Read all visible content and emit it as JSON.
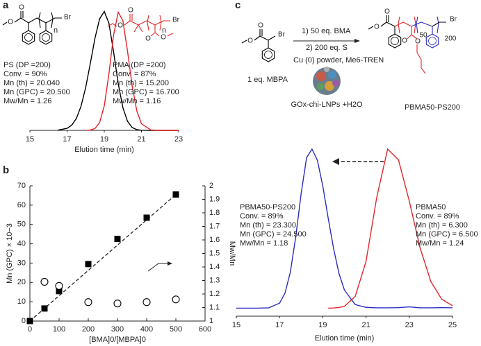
{
  "panel_labels": [
    "a",
    "b",
    "c"
  ],
  "chart_data": [
    {
      "type": "line",
      "xlabel": "Elution time (min)",
      "x": [
        15,
        16,
        16.5,
        17,
        17.25,
        17.5,
        17.75,
        18,
        18.25,
        18.5,
        18.75,
        19,
        19.25,
        19.5,
        19.75,
        20,
        20.25,
        20.5,
        20.75,
        21,
        21.5,
        22,
        23
      ],
      "xlim": [
        15,
        23
      ],
      "xticks": [
        15,
        17,
        19,
        21,
        23
      ],
      "ylim": [
        0,
        1.05
      ],
      "series": [
        {
          "name": "PS (DP =200)",
          "color": "#000000",
          "values": [
            null,
            null,
            0.002,
            0.017,
            0.044,
            0.1,
            0.203,
            0.36,
            0.563,
            0.775,
            0.938,
            1,
            0.902,
            0.662,
            0.395,
            0.192,
            0.076,
            0.024,
            0.006,
            0.001,
            0,
            0,
            0
          ],
          "notes": [
            "Conv. = 90%",
            "Mn (th) = 20.040",
            "Mn (GPC) = 20.500",
            "Mw/Mn = 1.26"
          ]
        },
        {
          "name": "PMA (DP =200)",
          "color": "#e5252a",
          "values": [
            null,
            null,
            null,
            null,
            null,
            null,
            null,
            0,
            0.003,
            0.015,
            0.066,
            0.206,
            0.474,
            0.801,
            0.994,
            0.923,
            0.667,
            0.375,
            0.164,
            0.056,
            0.003,
            0,
            0
          ],
          "notes": [
            "Conv. = 87%",
            "Mn (th) = 15.200",
            "Mn (GPC) = 16.700",
            "Mw/Mn = 1.16"
          ]
        }
      ],
      "structures": [
        [
          "O",
          "O",
          "n",
          "Br"
        ],
        [
          "O",
          "O",
          "O",
          "O",
          "n",
          "Br"
        ]
      ]
    },
    {
      "type": "scatter",
      "xlabel": "[BMA]0/[MBPA]0",
      "ylabel": "Mn (GPC) × 10−3",
      "y2label": "Mw/Mn",
      "xlim": [
        0,
        600
      ],
      "xticks": [
        0,
        100,
        200,
        300,
        400,
        500,
        600
      ],
      "ylim": [
        0,
        70
      ],
      "yticks": [
        0,
        10,
        20,
        30,
        40,
        50,
        60,
        70
      ],
      "y2lim": [
        1,
        2
      ],
      "y2ticks": [
        1,
        1.1,
        1.2,
        1.3,
        1.4,
        1.5,
        1.6,
        1.7,
        1.8,
        1.9,
        2
      ],
      "series": [
        {
          "marker": "square",
          "color": "#000000",
          "x": [
            0,
            50,
            100,
            200,
            300,
            400,
            500
          ],
          "values": [
            0,
            6.5,
            15.5,
            29.5,
            42.5,
            53.5,
            65.5
          ]
        },
        {
          "marker": "circle",
          "color": "#000000",
          "axis": "y2",
          "x": [
            50,
            100,
            200,
            300,
            400,
            500
          ],
          "values": [
            1.29,
            1.26,
            1.14,
            1.13,
            1.14,
            1.16
          ]
        }
      ],
      "fit": {
        "x": [
          0,
          500
        ],
        "values": [
          0,
          65.5
        ]
      }
    },
    {
      "type": "line",
      "xlabel": "Elution time (min)",
      "x": [
        15,
        16,
        16.5,
        17,
        17.25,
        17.5,
        17.75,
        18,
        18.25,
        18.5,
        18.75,
        19,
        19.25,
        19.5,
        19.75,
        20,
        20.5,
        21,
        21.5,
        22,
        22.5,
        23,
        23.5,
        24,
        24.5,
        25
      ],
      "xlim": [
        15,
        25
      ],
      "xticks": [
        15,
        17,
        19,
        21,
        23,
        25
      ],
      "ylim": [
        -0.04,
        1
      ],
      "series": [
        {
          "name": "PBMA50-PS200",
          "color": "#2b2bc0",
          "values": [
            0.01,
            0.01,
            0.012,
            0.041,
            0.103,
            0.235,
            0.455,
            0.725,
            0.946,
            1.0,
            0.93,
            0.77,
            0.57,
            0.38,
            0.225,
            0.123,
            0.032,
            0.015,
            0.012,
            0.012,
            0.013,
            0.018,
            0.012,
            0.012,
            0.013,
            0.012
          ],
          "notes": [
            "Conv. = 89%",
            "Mn (th) = 23.300",
            "Mn (GPC) = 24.500",
            "Mw/Mn = 1.18"
          ]
        },
        {
          "name": "PBMA50",
          "color": "#e5252a",
          "values": [
            null,
            null,
            null,
            null,
            null,
            null,
            null,
            null,
            null,
            null,
            null,
            null,
            0.01,
            0.011,
            0.014,
            0.021,
            0.083,
            0.301,
            0.703,
            1.0,
            0.933,
            0.677,
            0.385,
            0.175,
            0.066,
            0.025
          ],
          "notes": [
            "Conv. = 89%",
            "Mn (th) = 6.300",
            "Mn (GPC) = 6.500",
            "Mw/Mn = 1.24"
          ]
        }
      ],
      "scheme": {
        "step1": "1) 50 eq. BMA",
        "step2": "2) 200 eq. S",
        "conditions": "Cu (0) powder, Me6-TREN",
        "initiator": "1 eq. MBPA",
        "catalyst": "GOx-chi-LNPs +H2O",
        "product": "PBMA50-PS200"
      },
      "structures": [
        [
          "O",
          "O",
          "Br"
        ],
        [
          "O",
          "O",
          "O",
          "O",
          "50",
          "200",
          "Br"
        ]
      ]
    }
  ]
}
